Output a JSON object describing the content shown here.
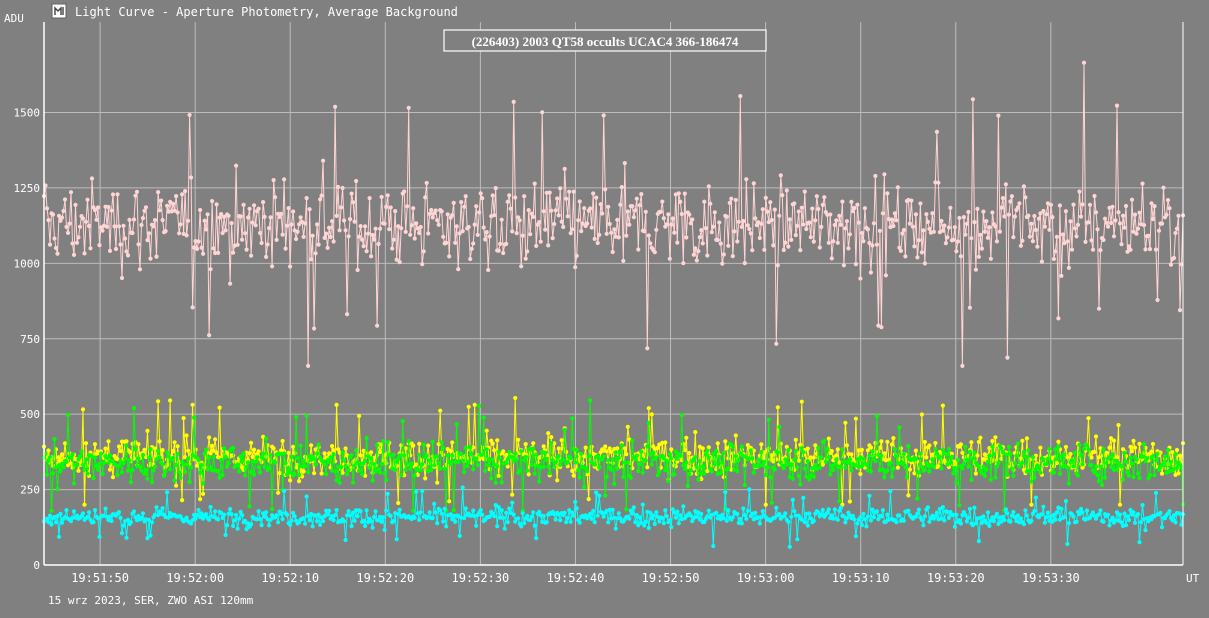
{
  "window": {
    "title": "Light Curve - Aperture Photometry, Average Background",
    "icon": "app-window-icon"
  },
  "footer": {
    "caption": "15 wrz 2023, SER, ZWO ASI 120mm"
  },
  "chart_data": {
    "type": "line",
    "title": "(226403) 2003 QT58 occults UCAC4 366-186474",
    "ylabel": "ADU",
    "xlabel": "UT",
    "ylim": [
      0,
      1800
    ],
    "yticks": [
      "0",
      "250",
      "500",
      "750",
      "1000",
      "1250",
      "1500"
    ],
    "ytick_values": [
      0,
      250,
      500,
      750,
      1000,
      1250,
      1500
    ],
    "xticks": [
      "19:51:50",
      "19:52:00",
      "19:52:10",
      "19:52:20",
      "19:52:30",
      "19:52:40",
      "19:52:50",
      "19:53:00",
      "19:53:10",
      "19:53:20",
      "19:53:30"
    ],
    "xtick_seconds": [
      50,
      60,
      70,
      80,
      90,
      100,
      110,
      120,
      130,
      140,
      150
    ],
    "xlim_seconds": [
      44.1,
      163.9
    ],
    "grid": true,
    "colors": {
      "background": "#808080",
      "grid": "#bcbcbc",
      "text": "#ffffff",
      "title_box_bg": "#808080",
      "title_box_border": "#ffffff"
    },
    "series": [
      {
        "color": "#ffd4d4",
        "approx_mean": 1130,
        "approx_spread": 160,
        "approx_min": 660,
        "approx_max": 1670
      },
      {
        "color": "#ffff00",
        "approx_mean": 360,
        "approx_spread": 70,
        "approx_min": 200,
        "approx_max": 580
      },
      {
        "color": "#00ff00",
        "approx_mean": 340,
        "approx_spread": 70,
        "approx_min": 180,
        "approx_max": 580
      },
      {
        "color": "#00ffff",
        "approx_mean": 160,
        "approx_spread": 35,
        "approx_min": 60,
        "approx_max": 260
      }
    ]
  }
}
